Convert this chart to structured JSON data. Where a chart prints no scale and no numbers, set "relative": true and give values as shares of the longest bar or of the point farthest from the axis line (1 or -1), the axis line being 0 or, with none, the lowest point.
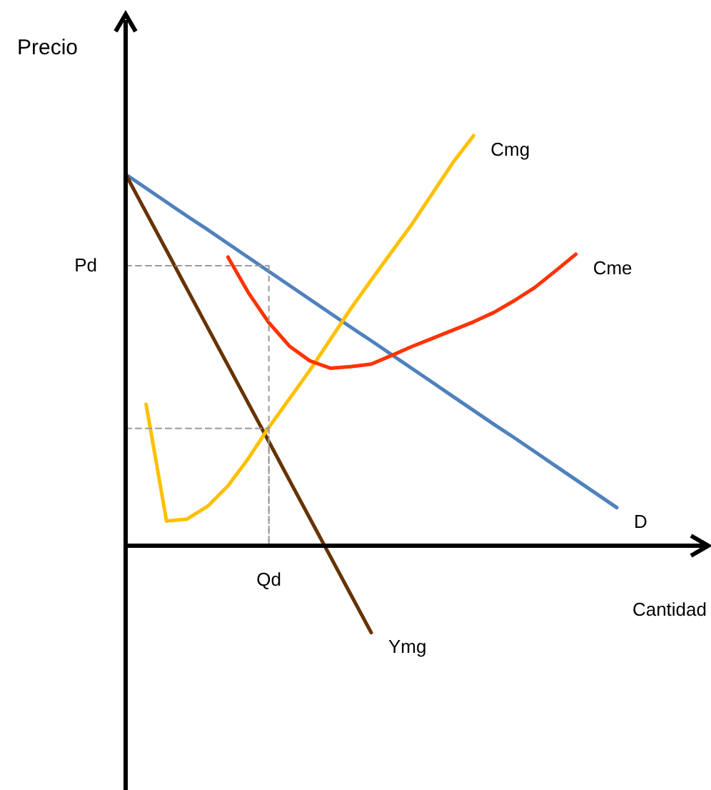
{
  "chart_data": {
    "type": "line",
    "relative": true,
    "xlabel": "Cantidad",
    "ylabel": "Precio",
    "line_style": "solid",
    "annotations": [
      "Pd",
      "Qd"
    ],
    "categories": [
      null,
      null,
      null,
      null,
      null,
      null,
      null,
      null,
      null,
      null,
      null,
      null,
      null,
      null,
      null,
      null,
      null,
      null,
      null,
      null,
      null,
      null,
      null,
      null,
      null
    ],
    "series": [
      {
        "name": "D",
        "color": "#4f81bd",
        "values": [
          0.906,
          0.872,
          0.838,
          0.804,
          0.771,
          0.737,
          0.703,
          0.669,
          0.635,
          0.601,
          0.567,
          0.533,
          0.5,
          0.466,
          0.432,
          0.398,
          0.364,
          0.33,
          0.296,
          0.263,
          0.229,
          0.195,
          0.161,
          0.127,
          0.093
        ]
      },
      {
        "name": "Ymg",
        "color": "#663300",
        "values": [
          0.906,
          0.813,
          0.72,
          0.626,
          0.533,
          0.44,
          0.347,
          0.254,
          0.16,
          0.067,
          -0.026,
          -0.119,
          -0.212,
          null,
          null,
          null,
          null,
          null,
          null,
          null,
          null,
          null,
          null,
          null,
          null
        ]
      },
      {
        "name": "Cmg",
        "color": "#ffc000",
        "values": [
          null,
          0.345,
          0.06,
          0.065,
          0.096,
          0.146,
          0.213,
          0.289,
          0.358,
          0.428,
          0.503,
          0.578,
          0.648,
          0.717,
          0.785,
          0.86,
          0.935,
          1,
          null,
          null,
          null,
          null,
          null,
          null,
          null
        ]
      },
      {
        "name": "Cme",
        "color": "#ff3300",
        "values": [
          null,
          null,
          null,
          null,
          null,
          0.704,
          0.617,
          0.544,
          0.487,
          0.451,
          0.433,
          0.437,
          0.443,
          0.464,
          0.486,
          0.506,
          0.526,
          0.546,
          0.569,
          0.598,
          0.63,
          0.67,
          0.711,
          null,
          null
        ]
      },
      {
        "color": "#999999",
        "line_style": "dashed",
        "values": [
          0.683,
          0.683,
          0.683,
          0.683,
          0.683,
          0.683,
          0.683,
          0.683,
          null,
          null,
          null,
          null,
          null,
          null,
          null,
          null,
          null,
          null,
          null,
          null,
          null,
          null,
          null,
          null,
          null
        ]
      },
      {
        "color": "#999999",
        "line_style": "dashed",
        "values": [
          0.286,
          0.286,
          0.286,
          0.286,
          0.286,
          0.286,
          0.286,
          0.286,
          null,
          null,
          null,
          null,
          null,
          null,
          null,
          null,
          null,
          null,
          null,
          null,
          null,
          null,
          null,
          null,
          null
        ]
      }
    ]
  }
}
